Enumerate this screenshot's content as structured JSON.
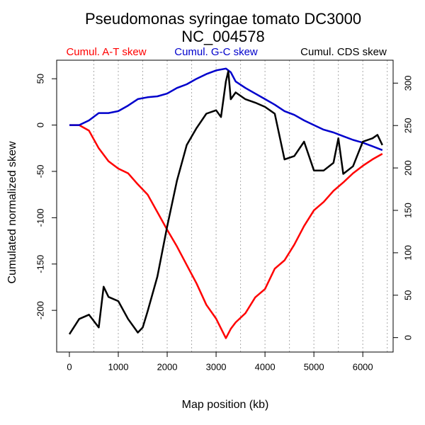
{
  "chart_data": {
    "type": "line",
    "title": "Pseudomonas syringae tomato DC3000",
    "subtitle": "NC_004578",
    "x_label": "Map position (kb)",
    "y_label": "Cumulated normalized skew",
    "xlim": [
      -260,
      6620
    ],
    "xticks": [
      0,
      1000,
      2000,
      3000,
      4000,
      5000,
      6000
    ],
    "xgrid": [
      500,
      1000,
      1500,
      2000,
      2500,
      3000,
      3500,
      4000,
      4500,
      5000,
      5500,
      6000,
      6500
    ],
    "ylim": [
      -245,
      70
    ],
    "yticks": [
      -200,
      -150,
      -100,
      -50,
      0,
      50
    ],
    "y2lim": [
      -17,
      327
    ],
    "y2ticks": [
      0,
      50,
      100,
      150,
      200,
      250,
      300
    ],
    "series": [
      {
        "name": "Cumul. A-T skew",
        "color": "#ff0000",
        "x": [
          0,
          200,
          400,
          600,
          800,
          1000,
          1200,
          1400,
          1600,
          1800,
          2000,
          2200,
          2400,
          2600,
          2800,
          3000,
          3200,
          3300,
          3400,
          3600,
          3800,
          4000,
          4200,
          4400,
          4600,
          4800,
          5000,
          5200,
          5400,
          5600,
          5800,
          6000,
          6200,
          6400
        ],
        "values": [
          0,
          0,
          -6,
          -25,
          -39,
          -47,
          -52,
          -64,
          -75,
          -94,
          -113,
          -131,
          -151,
          -171,
          -194,
          -209,
          -230,
          -220,
          -213,
          -203,
          -186,
          -177,
          -155,
          -146,
          -129,
          -109,
          -92,
          -83,
          -71,
          -62,
          -52,
          -44,
          -37,
          -31
        ]
      },
      {
        "name": "Cumul. G-C skew",
        "color": "#0000cc",
        "x": [
          0,
          200,
          400,
          600,
          800,
          1000,
          1200,
          1400,
          1600,
          1800,
          2000,
          2200,
          2400,
          2600,
          2800,
          3000,
          3200,
          3300,
          3400,
          3600,
          3800,
          4000,
          4200,
          4400,
          4600,
          4800,
          5000,
          5200,
          5400,
          5600,
          5800,
          6000,
          6200,
          6400
        ],
        "values": [
          0,
          0,
          5,
          13,
          13,
          15,
          21,
          28,
          30,
          31,
          34,
          40,
          44,
          50,
          55,
          59,
          61,
          57,
          47,
          40,
          34,
          28,
          22,
          15,
          11,
          5,
          0,
          -5,
          -8,
          -12,
          -16,
          -19,
          -23,
          -27
        ]
      },
      {
        "name": "Cumul. CDS skew",
        "color": "#000000",
        "axis": "y2",
        "x": [
          0,
          200,
          400,
          600,
          700,
          800,
          1000,
          1200,
          1400,
          1500,
          1600,
          1800,
          2000,
          2200,
          2400,
          2600,
          2800,
          3000,
          3100,
          3200,
          3250,
          3300,
          3400,
          3600,
          3800,
          4000,
          4200,
          4400,
          4600,
          4800,
          5000,
          5200,
          5400,
          5500,
          5600,
          5800,
          6000,
          6200,
          6300,
          6400
        ],
        "values": [
          4,
          22,
          27,
          12,
          60,
          48,
          43,
          22,
          6,
          12,
          31,
          72,
          131,
          185,
          227,
          247,
          264,
          268,
          260,
          302,
          314,
          281,
          289,
          281,
          277,
          272,
          264,
          210,
          214,
          231,
          197,
          197,
          206,
          235,
          193,
          202,
          231,
          235,
          239,
          227
        ]
      }
    ]
  }
}
